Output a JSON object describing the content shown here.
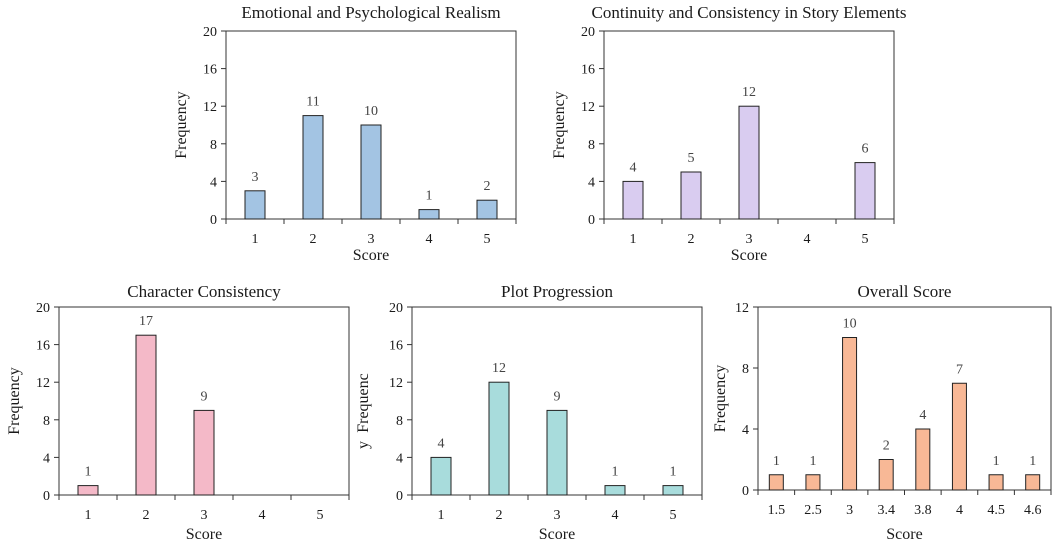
{
  "chart_data": [
    {
      "type": "bar",
      "title": "Emotional and Psychological Realism",
      "xlabel": "Score",
      "ylabel": "Frequency",
      "categories": [
        "1",
        "2",
        "3",
        "4",
        "5"
      ],
      "values": [
        3,
        11,
        10,
        1,
        2
      ],
      "data_labels": [
        "3",
        "11",
        "10",
        "1",
        "2"
      ],
      "ylim": [
        0,
        20
      ],
      "yticks": [
        "0",
        "4",
        "8",
        "12",
        "16",
        "20"
      ],
      "color": "#a3c4e3",
      "grid": false
    },
    {
      "type": "bar",
      "title": "Continuity and Consistency in Story Elements",
      "xlabel": "Score",
      "ylabel": "Frequency",
      "categories": [
        "1",
        "2",
        "3",
        "4",
        "5"
      ],
      "values": [
        4,
        5,
        12,
        0,
        6
      ],
      "data_labels": [
        "4",
        "5",
        "12",
        "",
        "6"
      ],
      "ylim": [
        0,
        20
      ],
      "yticks": [
        "0",
        "4",
        "8",
        "12",
        "16",
        "20"
      ],
      "color": "#d9ccf0",
      "grid": false
    },
    {
      "type": "bar",
      "title": "Character Consistency",
      "xlabel": "Score",
      "ylabel": "Frequency",
      "categories": [
        "1",
        "2",
        "3",
        "4",
        "5"
      ],
      "values": [
        1,
        17,
        9,
        0,
        0
      ],
      "data_labels": [
        "1",
        "17",
        "9",
        "",
        ""
      ],
      "ylim": [
        0,
        20
      ],
      "yticks": [
        "0",
        "4",
        "8",
        "12",
        "16",
        "20"
      ],
      "color": "#f4b9c8",
      "grid": false
    },
    {
      "type": "bar",
      "title": "Plot Progression",
      "xlabel": "Score",
      "ylabel": [
        "Frequenc",
        "y"
      ],
      "categories": [
        "1",
        "2",
        "3",
        "4",
        "5"
      ],
      "values": [
        4,
        12,
        9,
        1,
        1
      ],
      "data_labels": [
        "4",
        "12",
        "9",
        "1",
        "1"
      ],
      "ylim": [
        0,
        20
      ],
      "yticks": [
        "0",
        "4",
        "8",
        "12",
        "16",
        "20"
      ],
      "color": "#a8dcdc",
      "grid": false
    },
    {
      "type": "bar",
      "title": "Overall Score",
      "xlabel": "Score",
      "ylabel": "Frequency",
      "categories": [
        "1.5",
        "2.5",
        "3",
        "3.4",
        "3.8",
        "4",
        "4.5",
        "4.6"
      ],
      "values": [
        1,
        1,
        10,
        2,
        4,
        7,
        1,
        1
      ],
      "data_labels": [
        "1",
        "1",
        "10",
        "2",
        "4",
        "7",
        "1",
        "1"
      ],
      "ylim": [
        0,
        12
      ],
      "yticks": [
        "0",
        "4",
        "8",
        "12"
      ],
      "color": "#f8b896",
      "grid": false
    }
  ]
}
